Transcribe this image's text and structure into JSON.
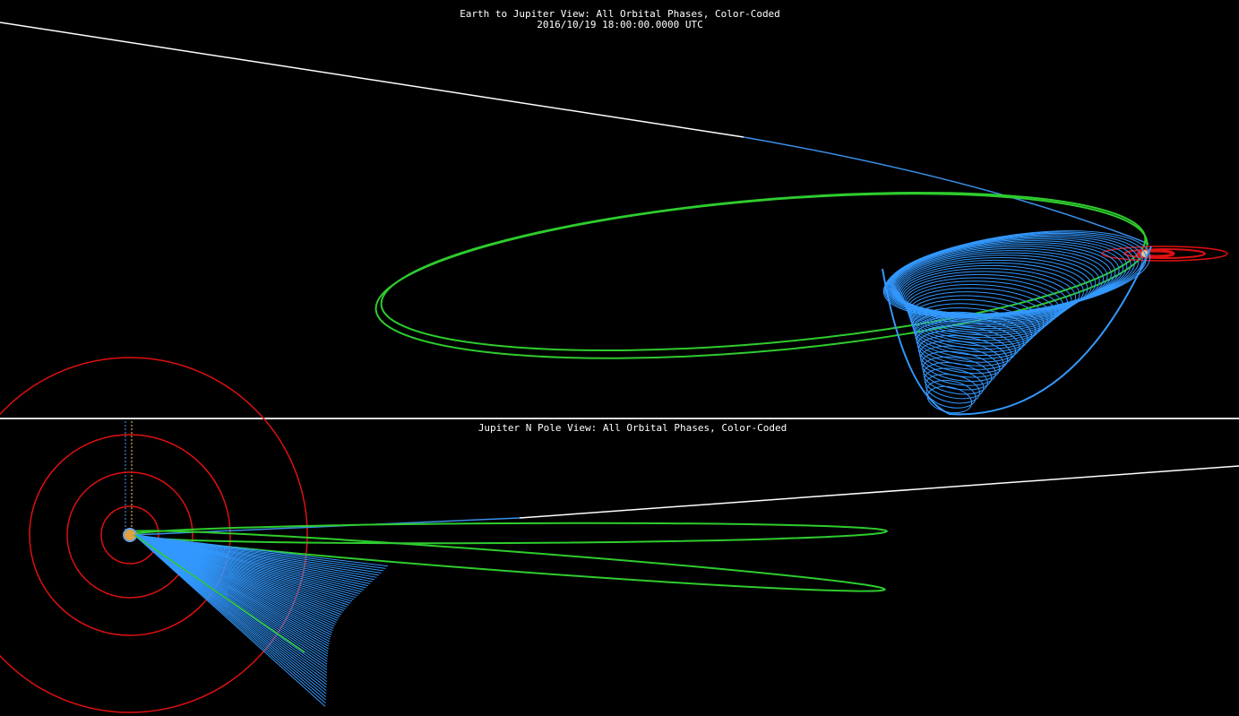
{
  "top_panel": {
    "title": "Earth to Jupiter View: All Orbital Phases, Color-Coded",
    "timestamp": "2016/10/19 18:00:00.0000 UTC"
  },
  "bottom_panel": {
    "title": "Jupiter N Pole View: All Orbital Phases, Color-Coded"
  }
}
